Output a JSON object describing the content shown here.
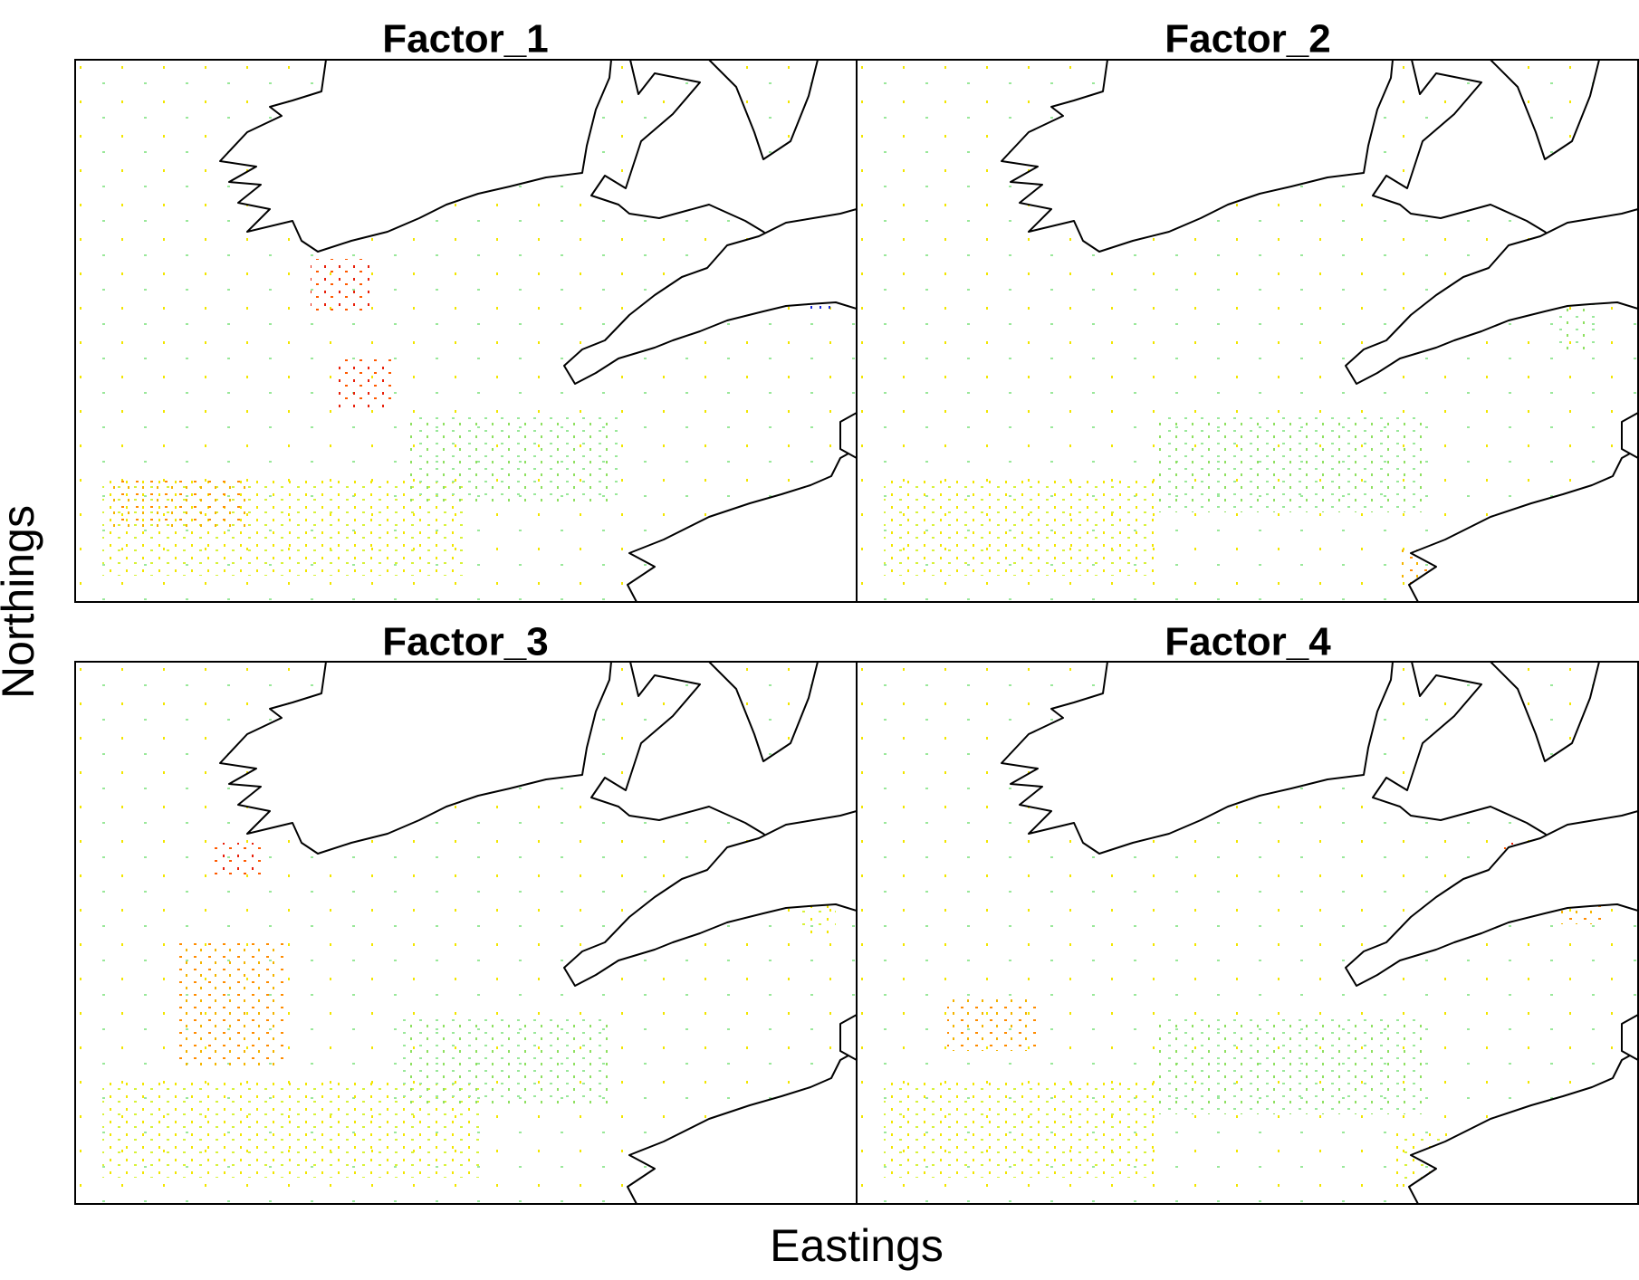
{
  "panels": [
    {
      "title": "Factor_1"
    },
    {
      "title": "Factor_2"
    },
    {
      "title": "Factor_3"
    },
    {
      "title": "Factor_4"
    }
  ],
  "x_label": "Eastings",
  "y_label": "Northings"
}
